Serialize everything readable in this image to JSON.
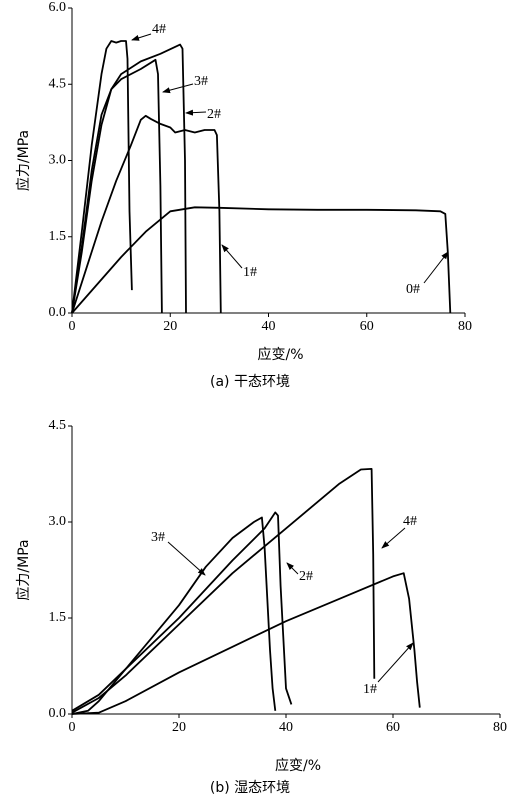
{
  "chart_data": [
    {
      "type": "line",
      "caption": "(a) 干态环境",
      "xlabel": "应变/%",
      "ylabel": "应力/MPa",
      "xlim": [
        0,
        80
      ],
      "xticks": [
        0,
        20,
        40,
        60,
        80
      ],
      "ylim": [
        0,
        6
      ],
      "yticks": [
        {
          "value": 0,
          "label": "0.0"
        },
        1.5,
        {
          "value": 3,
          "label": "3.0"
        },
        4.5,
        {
          "value": 6,
          "label": "6.0"
        }
      ],
      "grid": false,
      "series": [
        {
          "name": "0#",
          "color": "#000000",
          "x": [
            0,
            5,
            10,
            15,
            20,
            25,
            30,
            40,
            50,
            60,
            70,
            75,
            76,
            76.5,
            77
          ],
          "values": [
            0,
            0.55,
            1.1,
            1.6,
            2.0,
            2.08,
            2.07,
            2.04,
            2.03,
            2.03,
            2.02,
            2.0,
            1.95,
            1.2,
            0
          ]
        },
        {
          "name": "1#",
          "color": "#000000",
          "x": [
            0,
            3,
            6,
            9,
            12,
            14,
            15,
            16,
            18,
            20,
            21,
            23,
            25,
            27,
            29,
            29.5,
            30,
            30.3
          ],
          "values": [
            0,
            0.9,
            1.8,
            2.6,
            3.3,
            3.8,
            3.88,
            3.82,
            3.72,
            3.65,
            3.55,
            3.6,
            3.55,
            3.6,
            3.6,
            3.5,
            2.0,
            0
          ]
        },
        {
          "name": "2#",
          "color": "#000000",
          "x": [
            0,
            2,
            4,
            6,
            8,
            10,
            14,
            18,
            22,
            22.5,
            23,
            23.2
          ],
          "values": [
            0,
            1.2,
            2.6,
            3.7,
            4.4,
            4.7,
            4.95,
            5.1,
            5.28,
            5.2,
            3.0,
            0
          ]
        },
        {
          "name": "3#",
          "color": "#000000",
          "x": [
            0,
            2,
            4,
            6,
            8,
            10,
            14,
            17,
            17.5,
            18,
            18.3
          ],
          "values": [
            0,
            1.3,
            2.8,
            3.9,
            4.4,
            4.6,
            4.8,
            4.98,
            4.7,
            2.5,
            0
          ]
        },
        {
          "name": "4#",
          "color": "#000000",
          "x": [
            0,
            2,
            4,
            6,
            7,
            8,
            9,
            10,
            11,
            11.3,
            11.7,
            12.2
          ],
          "values": [
            0,
            1.6,
            3.3,
            4.7,
            5.2,
            5.35,
            5.32,
            5.35,
            5.35,
            5.0,
            2.0,
            0.45
          ]
        }
      ]
    },
    {
      "type": "line",
      "caption": "(b) 湿态环境",
      "xlabel": "应变/%",
      "ylabel": "应力/MPa",
      "xlim": [
        0,
        80
      ],
      "xticks": [
        0,
        20,
        40,
        60,
        80
      ],
      "ylim": [
        0,
        4.5
      ],
      "yticks": [
        {
          "value": 0,
          "label": "0.0"
        },
        1.5,
        {
          "value": 3,
          "label": "3.0"
        },
        4.5
      ],
      "grid": false,
      "series": [
        {
          "name": "1#",
          "color": "#000000",
          "x": [
            0,
            5,
            10,
            20,
            30,
            40,
            50,
            60,
            62,
            63,
            64,
            64.5,
            65
          ],
          "values": [
            0,
            0.02,
            0.2,
            0.65,
            1.05,
            1.45,
            1.8,
            2.15,
            2.2,
            1.8,
            1.0,
            0.5,
            0.1
          ]
        },
        {
          "name": "2#",
          "color": "#000000",
          "x": [
            0,
            5,
            10,
            20,
            30,
            36,
            38,
            38.5,
            39,
            40,
            41
          ],
          "values": [
            0.05,
            0.3,
            0.7,
            1.5,
            2.4,
            2.9,
            3.15,
            3.1,
            2.0,
            0.4,
            0.15
          ]
        },
        {
          "name": "3#",
          "color": "#000000",
          "x": [
            0,
            3,
            5,
            10,
            15,
            20,
            25,
            30,
            34,
            35.5,
            36,
            37,
            37.5,
            38
          ],
          "values": [
            0,
            0.05,
            0.2,
            0.7,
            1.2,
            1.7,
            2.3,
            2.75,
            3.0,
            3.07,
            2.6,
            1.0,
            0.4,
            0.05
          ]
        },
        {
          "name": "4#",
          "color": "#000000",
          "x": [
            0,
            5,
            10,
            20,
            30,
            40,
            50,
            54,
            56,
            56.3,
            56.5
          ],
          "values": [
            0.02,
            0.25,
            0.6,
            1.4,
            2.2,
            2.9,
            3.6,
            3.82,
            3.83,
            2.5,
            0.55
          ]
        }
      ]
    }
  ]
}
